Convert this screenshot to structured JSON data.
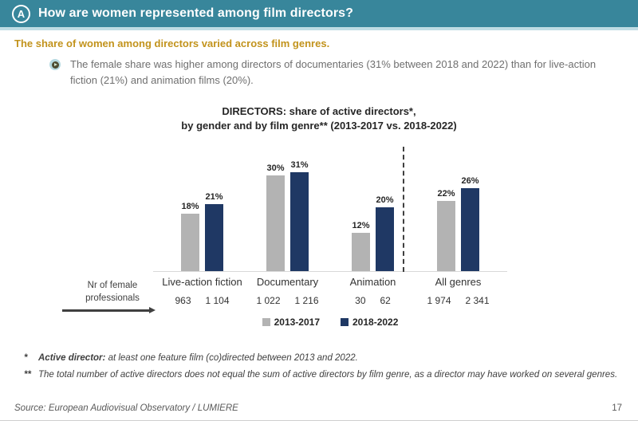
{
  "header": {
    "badge": "A",
    "title": "How are women represented among film directors?"
  },
  "lead": {
    "headline": "The share of women among directors varied across film genres.",
    "bullet_text": "The female share was higher among directors of documentaries (31% between 2018 and 2022) than for live-action fiction (21%) and animation films (20%)."
  },
  "chart_data": {
    "type": "bar",
    "title_lines": [
      "DIRECTORS: share of active directors*,",
      "by gender and by film genre** (2013-2017 vs. 2018-2022)"
    ],
    "categories": [
      "Live-action fiction",
      "Documentary",
      "Animation",
      "All genres"
    ],
    "series": [
      {
        "name": "2013-2017",
        "color": "#B3B3B3",
        "values": [
          18,
          30,
          12,
          22
        ],
        "counts": [
          "963",
          "1 022",
          "30",
          "1 974"
        ]
      },
      {
        "name": "2018-2022",
        "color": "#1F3864",
        "values": [
          21,
          31,
          20,
          26
        ],
        "counts": [
          "1 104",
          "1 216",
          "62",
          "2 341"
        ]
      }
    ],
    "unit": "%",
    "ylim": [
      0,
      35
    ],
    "grid": false,
    "legend_position": "bottom",
    "divider_before_category": "All genres",
    "left_note": {
      "line1": "Nr of female",
      "line2": "professionals"
    }
  },
  "footnotes": [
    {
      "marker": "*",
      "bold": "Active director: ",
      "text": "at least one feature film (co)directed between 2013 and 2022."
    },
    {
      "marker": "**",
      "bold": "",
      "text": "The total number of active directors does not equal the sum of active directors by film genre, as a director may have worked on several genres."
    }
  ],
  "footer": {
    "source": "Source: European Audiovisual Observatory / LUMIERE",
    "page": "17"
  },
  "colors": {
    "header_bg": "#38869B",
    "header_strip": "#BFDDE4",
    "headline_gold": "#C2931C",
    "series_gray": "#B3B3B3",
    "series_navy": "#1F3864"
  }
}
